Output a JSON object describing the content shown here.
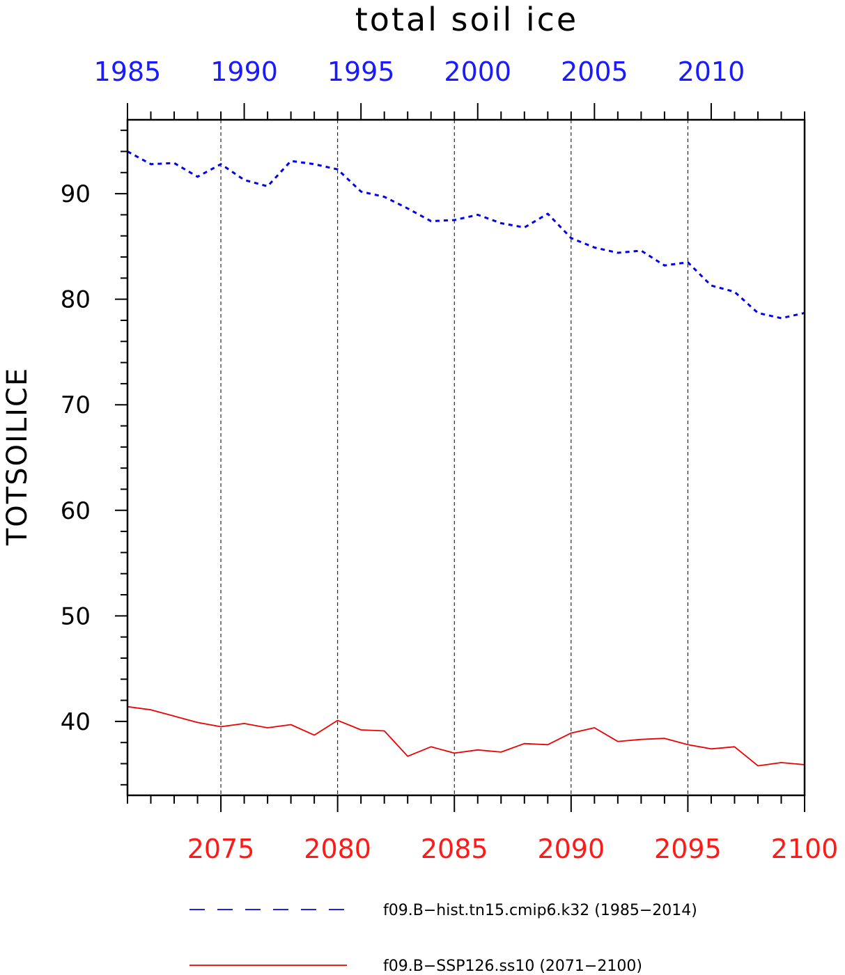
{
  "chart_data": {
    "type": "line",
    "title": "total soil ice",
    "ylabel": "TOTSOILICE",
    "ylim": [
      33,
      97
    ],
    "yticks": [
      40,
      50,
      60,
      70,
      80,
      90
    ],
    "grid": "vertical-dashed",
    "x_top": {
      "range": [
        1985,
        2014
      ],
      "ticks": [
        1985,
        1990,
        1995,
        2000,
        2005,
        2010
      ],
      "color": "#0000ee"
    },
    "x_bottom": {
      "range": [
        2071,
        2100
      ],
      "ticks": [
        2075,
        2080,
        2085,
        2090,
        2095,
        2100
      ],
      "color": "#ee0000"
    },
    "series": [
      {
        "name": "f09.B−hist.tn15.cmip6.k32 (1985−2014)",
        "axis": "top",
        "color": "#0000ee",
        "style": "dashed",
        "x": [
          1985,
          1986,
          1987,
          1988,
          1989,
          1990,
          1991,
          1992,
          1993,
          1994,
          1995,
          1996,
          1997,
          1998,
          1999,
          2000,
          2001,
          2002,
          2003,
          2004,
          2005,
          2006,
          2007,
          2008,
          2009,
          2010,
          2011,
          2012,
          2013,
          2014
        ],
        "values": [
          94.0,
          92.8,
          92.9,
          91.6,
          92.8,
          91.3,
          90.7,
          93.1,
          92.8,
          92.3,
          90.2,
          89.7,
          88.6,
          87.4,
          87.5,
          88.0,
          87.2,
          86.8,
          88.1,
          85.8,
          84.9,
          84.4,
          84.6,
          83.2,
          83.5,
          81.3,
          80.7,
          78.7,
          78.2,
          78.7
        ]
      },
      {
        "name": "f09.B−SSP126.ss10 (2071−2100)",
        "axis": "bottom",
        "color": "#ee0000",
        "style": "solid",
        "x": [
          2071,
          2072,
          2073,
          2074,
          2075,
          2076,
          2077,
          2078,
          2079,
          2080,
          2081,
          2082,
          2083,
          2084,
          2085,
          2086,
          2087,
          2088,
          2089,
          2090,
          2091,
          2092,
          2093,
          2094,
          2095,
          2096,
          2097,
          2098,
          2099,
          2100
        ],
        "values": [
          41.4,
          41.1,
          40.5,
          39.9,
          39.5,
          39.8,
          39.4,
          39.7,
          38.7,
          40.1,
          39.2,
          39.1,
          36.7,
          37.6,
          37.0,
          37.3,
          37.1,
          37.9,
          37.8,
          38.9,
          39.4,
          38.1,
          38.3,
          38.4,
          37.8,
          37.4,
          37.6,
          35.8,
          36.1,
          35.9
        ]
      }
    ],
    "legend": "bottom"
  }
}
